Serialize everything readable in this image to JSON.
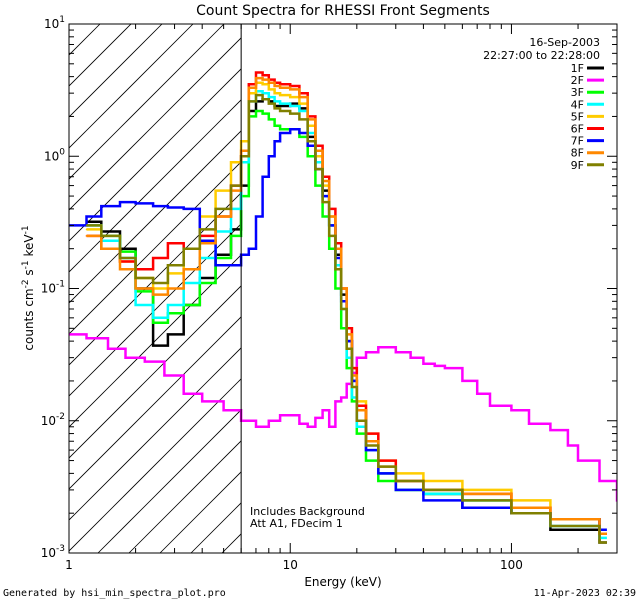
{
  "chart_data": {
    "type": "line",
    "title": "Count Spectra for RHESSI Front Segments",
    "xlabel": "Energy (keV)",
    "ylabel_parts": {
      "a": "counts cm",
      "b": "-2",
      "c": " s",
      "d": "-1",
      "e": " keV",
      "f": "-1"
    },
    "xscale": "log",
    "yscale": "log",
    "xlim": [
      1,
      300
    ],
    "ylim": [
      0.001,
      10
    ],
    "xticks": [
      {
        "v": 1,
        "label": "1"
      },
      {
        "v": 10,
        "label": "10"
      },
      {
        "v": 100,
        "label": "100"
      }
    ],
    "yticks": [
      {
        "v": 0.001,
        "base": "10",
        "exp": "-3"
      },
      {
        "v": 0.01,
        "base": "10",
        "exp": "-2"
      },
      {
        "v": 0.1,
        "base": "10",
        "exp": "-1"
      },
      {
        "v": 1,
        "base": "10",
        "exp": "0"
      },
      {
        "v": 10,
        "base": "10",
        "exp": "1"
      }
    ],
    "hatched_region_below_keV": 6,
    "date": "16-Sep-2003",
    "time_range": "22:27:00 to 22:28:00",
    "annotations": [
      "Includes Background",
      "Att A1, FDecim 1"
    ],
    "series": [
      {
        "name": "1F",
        "color": "#000000",
        "x": [
          1.2,
          1.4,
          1.7,
          2.0,
          2.4,
          2.8,
          3.3,
          3.9,
          4.6,
          5.4,
          6.0,
          6.5,
          7.0,
          7.5,
          8.0,
          8.5,
          9.0,
          10.0,
          11.0,
          12.0,
          13.0,
          14.0,
          15.0,
          16.0,
          17.0,
          18.0,
          19.0,
          20.0,
          22.0,
          25.0,
          30.0,
          40.0,
          60.0,
          100.0,
          150.0,
          250.0
        ],
        "y": [
          0.32,
          0.27,
          0.2,
          0.1,
          0.037,
          0.045,
          0.075,
          0.12,
          0.18,
          0.28,
          0.6,
          2.2,
          2.6,
          2.7,
          2.6,
          2.4,
          2.4,
          2.5,
          2.3,
          1.4,
          0.9,
          0.55,
          0.3,
          0.18,
          0.09,
          0.04,
          0.02,
          0.012,
          0.007,
          0.004,
          0.003,
          0.0028,
          0.0022,
          0.002,
          0.0015,
          0.0012
        ]
      },
      {
        "name": "2F",
        "color": "#ff00ff",
        "x": [
          1.0,
          1.2,
          1.5,
          1.8,
          2.2,
          2.7,
          3.3,
          4.0,
          5.0,
          6.0,
          7.0,
          8.0,
          9.0,
          10.0,
          11.0,
          12.0,
          13.0,
          14.0,
          15.0,
          16.0,
          17.0,
          18.0,
          19.0,
          20.0,
          22.0,
          25.0,
          30.0,
          35.0,
          40.0,
          45.0,
          50.0,
          60.0,
          70.0,
          80.0,
          100.0,
          120.0,
          150.0,
          180.0,
          200.0,
          250.0,
          300.0
        ],
        "y": [
          0.045,
          0.042,
          0.035,
          0.03,
          0.028,
          0.022,
          0.016,
          0.014,
          0.012,
          0.01,
          0.009,
          0.01,
          0.011,
          0.011,
          0.0095,
          0.009,
          0.0105,
          0.012,
          0.009,
          0.014,
          0.015,
          0.019,
          0.023,
          0.03,
          0.033,
          0.036,
          0.033,
          0.03,
          0.027,
          0.026,
          0.025,
          0.02,
          0.016,
          0.013,
          0.012,
          0.0095,
          0.0085,
          0.0065,
          0.005,
          0.0035,
          0.0025
        ]
      },
      {
        "name": "3F",
        "color": "#00ff00",
        "x": [
          1.2,
          1.4,
          1.7,
          2.0,
          2.4,
          2.8,
          3.3,
          3.9,
          4.6,
          5.4,
          6.0,
          6.5,
          7.0,
          7.5,
          8.0,
          8.5,
          9.0,
          10.0,
          11.0,
          12.0,
          13.0,
          14.0,
          15.0,
          16.0,
          17.0,
          18.0,
          19.0,
          20.0,
          22.0,
          25.0,
          30.0,
          40.0,
          60.0,
          100.0,
          150.0,
          250.0
        ],
        "y": [
          0.3,
          0.25,
          0.19,
          0.095,
          0.055,
          0.065,
          0.075,
          0.11,
          0.17,
          0.25,
          0.5,
          2.0,
          2.2,
          2.1,
          1.9,
          1.7,
          1.6,
          1.6,
          1.4,
          1.0,
          0.6,
          0.35,
          0.2,
          0.1,
          0.05,
          0.025,
          0.014,
          0.008,
          0.005,
          0.0035,
          0.003,
          0.0028,
          0.0025,
          0.002,
          0.0018,
          0.0014
        ]
      },
      {
        "name": "4F",
        "color": "#00ffff",
        "x": [
          1.2,
          1.4,
          1.7,
          2.0,
          2.4,
          2.8,
          3.3,
          3.9,
          4.6,
          5.4,
          6.0,
          6.5,
          7.0,
          7.5,
          8.0,
          8.5,
          9.0,
          10.0,
          11.0,
          12.0,
          13.0,
          14.0,
          15.0,
          16.0,
          17.0,
          18.0,
          19.0,
          20.0,
          22.0,
          25.0,
          30.0,
          40.0,
          60.0,
          100.0,
          150.0,
          250.0
        ],
        "y": [
          0.3,
          0.23,
          0.17,
          0.075,
          0.06,
          0.075,
          0.11,
          0.17,
          0.27,
          0.4,
          0.9,
          2.6,
          3.1,
          3.0,
          2.8,
          2.6,
          2.5,
          2.4,
          2.2,
          1.5,
          0.9,
          0.5,
          0.3,
          0.15,
          0.07,
          0.03,
          0.015,
          0.009,
          0.006,
          0.004,
          0.003,
          0.0028,
          0.0025,
          0.002,
          0.0016,
          0.0013
        ]
      },
      {
        "name": "5F",
        "color": "#ffcc00",
        "x": [
          1.2,
          1.4,
          1.7,
          2.0,
          2.4,
          2.8,
          3.3,
          3.9,
          4.6,
          5.4,
          6.0,
          6.5,
          7.0,
          7.5,
          8.0,
          8.5,
          9.0,
          10.0,
          11.0,
          12.0,
          13.0,
          14.0,
          15.0,
          16.0,
          17.0,
          18.0,
          19.0,
          20.0,
          22.0,
          25.0,
          30.0,
          40.0,
          60.0,
          100.0,
          150.0,
          250.0
        ],
        "y": [
          0.28,
          0.2,
          0.16,
          0.12,
          0.1,
          0.13,
          0.2,
          0.35,
          0.55,
          0.9,
          1.3,
          3.0,
          3.6,
          3.5,
          3.2,
          3.0,
          2.9,
          2.8,
          2.5,
          1.7,
          1.0,
          0.6,
          0.35,
          0.2,
          0.1,
          0.05,
          0.025,
          0.014,
          0.008,
          0.005,
          0.004,
          0.0035,
          0.003,
          0.0025,
          0.0018,
          0.0014
        ]
      },
      {
        "name": "6F",
        "color": "#ff0000",
        "x": [
          1.2,
          1.4,
          1.7,
          2.0,
          2.4,
          2.8,
          3.3,
          3.9,
          4.6,
          5.4,
          6.0,
          6.5,
          7.0,
          7.5,
          8.0,
          8.5,
          9.0,
          10.0,
          11.0,
          12.0,
          13.0,
          14.0,
          15.0,
          16.0,
          17.0,
          18.0,
          19.0,
          20.0,
          22.0,
          25.0,
          30.0,
          40.0,
          60.0,
          100.0,
          150.0,
          250.0
        ],
        "y": [
          0.25,
          0.2,
          0.16,
          0.14,
          0.17,
          0.22,
          0.2,
          0.25,
          0.35,
          0.6,
          1.0,
          3.5,
          4.3,
          4.1,
          3.8,
          3.6,
          3.5,
          3.4,
          3.0,
          2.0,
          1.2,
          0.7,
          0.4,
          0.22,
          0.1,
          0.05,
          0.025,
          0.013,
          0.008,
          0.005,
          0.0035,
          0.003,
          0.0028,
          0.0022,
          0.0018,
          0.0014
        ]
      },
      {
        "name": "7F",
        "color": "#0000ff",
        "x": [
          1.0,
          1.2,
          1.4,
          1.7,
          2.0,
          2.4,
          2.8,
          3.3,
          3.9,
          4.6,
          5.4,
          6.0,
          6.5,
          7.0,
          7.5,
          8.0,
          8.5,
          9.0,
          10.0,
          11.0,
          12.0,
          13.0,
          14.0,
          15.0,
          16.0,
          17.0,
          18.0,
          19.0,
          20.0,
          22.0,
          25.0,
          30.0,
          40.0,
          60.0,
          100.0,
          150.0,
          250.0
        ],
        "y": [
          0.3,
          0.35,
          0.42,
          0.45,
          0.44,
          0.42,
          0.41,
          0.4,
          0.23,
          0.15,
          0.15,
          0.18,
          0.2,
          0.35,
          0.7,
          1.0,
          1.3,
          1.5,
          1.6,
          1.5,
          1.2,
          0.8,
          0.5,
          0.3,
          0.17,
          0.08,
          0.04,
          0.02,
          0.01,
          0.006,
          0.004,
          0.003,
          0.0025,
          0.0022,
          0.002,
          0.0018,
          0.0015
        ]
      },
      {
        "name": "8F",
        "color": "#ff8800",
        "x": [
          1.2,
          1.4,
          1.7,
          2.0,
          2.4,
          2.8,
          3.3,
          3.9,
          4.6,
          5.4,
          6.0,
          6.5,
          7.0,
          7.5,
          8.0,
          8.5,
          9.0,
          10.0,
          11.0,
          12.0,
          13.0,
          14.0,
          15.0,
          16.0,
          17.0,
          18.0,
          19.0,
          20.0,
          22.0,
          25.0,
          30.0,
          40.0,
          60.0,
          100.0,
          150.0,
          250.0
        ],
        "y": [
          0.25,
          0.2,
          0.14,
          0.1,
          0.09,
          0.1,
          0.14,
          0.22,
          0.35,
          0.55,
          1.1,
          3.3,
          3.9,
          3.8,
          3.6,
          3.4,
          3.3,
          3.2,
          2.8,
          1.9,
          1.1,
          0.65,
          0.35,
          0.2,
          0.1,
          0.045,
          0.022,
          0.012,
          0.007,
          0.0045,
          0.0035,
          0.003,
          0.0028,
          0.0022,
          0.0018,
          0.0014
        ]
      },
      {
        "name": "9F",
        "color": "#808000",
        "x": [
          1.2,
          1.4,
          1.7,
          2.0,
          2.4,
          2.8,
          3.3,
          3.9,
          4.6,
          5.4,
          6.0,
          6.5,
          7.0,
          7.5,
          8.0,
          8.5,
          9.0,
          10.0,
          11.0,
          12.0,
          13.0,
          14.0,
          15.0,
          16.0,
          17.0,
          18.0,
          19.0,
          20.0,
          22.0,
          25.0,
          30.0,
          40.0,
          60.0,
          100.0,
          150.0,
          250.0
        ],
        "y": [
          0.3,
          0.25,
          0.17,
          0.12,
          0.11,
          0.15,
          0.2,
          0.28,
          0.4,
          0.6,
          1.0,
          2.6,
          2.9,
          2.7,
          2.5,
          2.3,
          2.2,
          2.1,
          1.9,
          1.3,
          0.8,
          0.45,
          0.25,
          0.14,
          0.07,
          0.035,
          0.018,
          0.01,
          0.0065,
          0.0045,
          0.0035,
          0.003,
          0.0025,
          0.002,
          0.0016,
          0.0012
        ]
      }
    ]
  },
  "footer": {
    "generator": "Generated by hsi_min_spectra_plot.pro",
    "timestamp": "11-Apr-2023 02:39"
  }
}
